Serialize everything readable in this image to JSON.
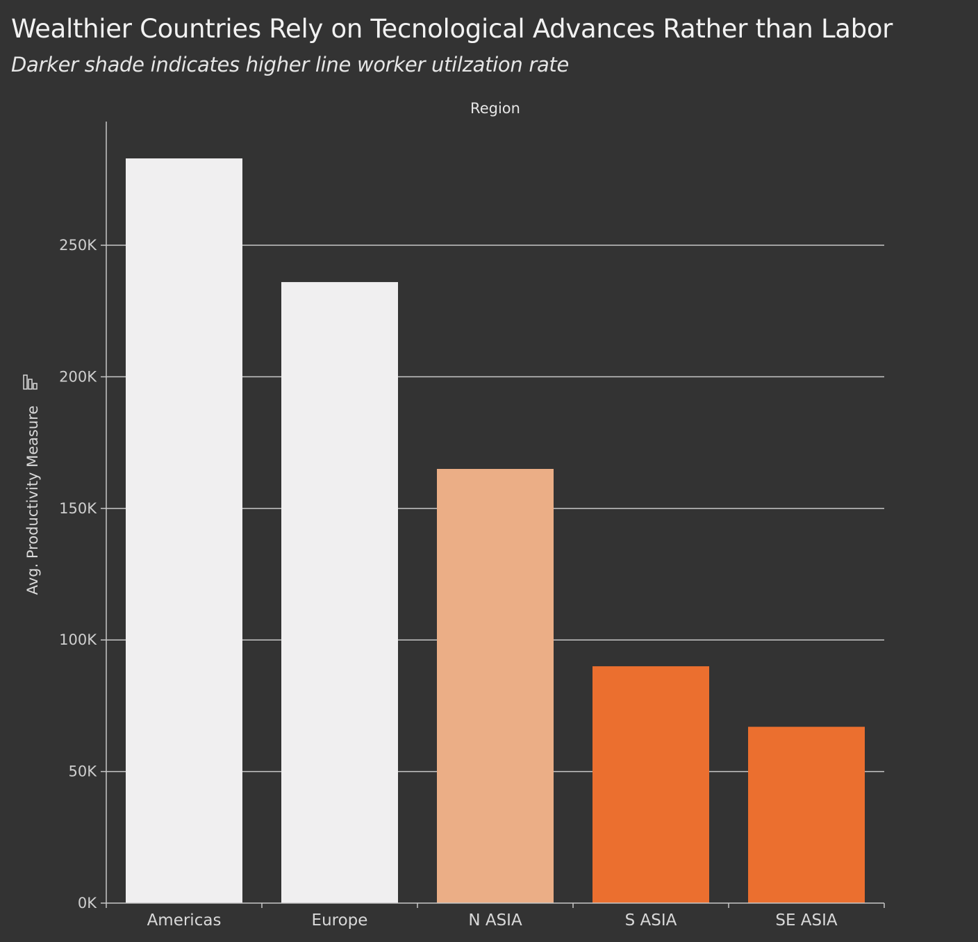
{
  "title": "Wealthier Countries Rely on Tecnological Advances Rather than Labor",
  "subtitle": "Darker shade indicates higher line worker utilzation rate",
  "chart_data": {
    "type": "bar",
    "column_header": "Region",
    "ylabel": "Avg. Productivity Measure",
    "ylabel_icon": "sort-icon",
    "categories": [
      "Americas",
      "Europe",
      "N ASIA",
      "S ASIA",
      "SE ASIA"
    ],
    "values": [
      283000,
      236000,
      165000,
      90000,
      67000
    ],
    "colors": [
      "#f0eff0",
      "#f0eff0",
      "#ebae86",
      "#eb6f2f",
      "#eb6f2f"
    ],
    "ylim": [
      0,
      297000
    ],
    "yticks": [
      0,
      50000,
      100000,
      150000,
      200000,
      250000
    ],
    "ytick_labels": [
      "0K",
      "50K",
      "100K",
      "150K",
      "200K",
      "250K"
    ],
    "grid": true,
    "background": "#333333",
    "grid_color": "#c8c8c8"
  }
}
